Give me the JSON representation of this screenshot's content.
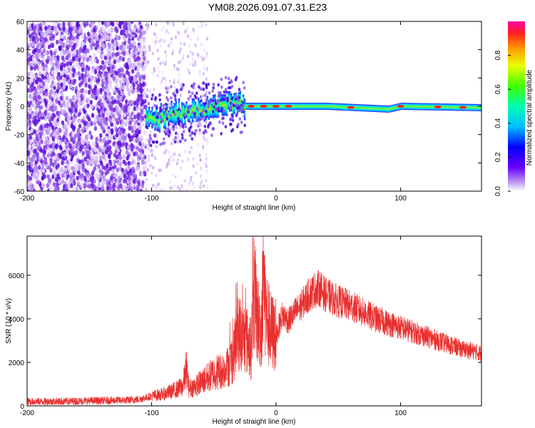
{
  "title": "YM08.2026.091.07.31.E23",
  "colors": {
    "snr_line": "#e8302e",
    "noise": "#7a2ee0",
    "axis": "#000000"
  },
  "chart_data": [
    {
      "type": "heatmap",
      "name": "spectrogram",
      "xlabel": "Height of straight line (km)",
      "ylabel": "Frequency (Hz)",
      "xlim": [
        -200,
        165
      ],
      "ylim": [
        -60,
        60
      ],
      "xticks": [
        -200,
        -100,
        0,
        100
      ],
      "yticks": [
        60,
        40,
        20,
        0,
        -20,
        -40,
        -60
      ],
      "ytick_labels": [
        "60",
        "40",
        "20",
        "0",
        "-20",
        "-40",
        "-60"
      ],
      "xtick_labels": [
        "-200",
        "-100",
        "0",
        "100"
      ],
      "colorbar": {
        "label": "Normalized spectral amplitude",
        "range": [
          0,
          1
        ],
        "ticks": [
          0.0,
          0.2,
          0.4,
          0.6,
          0.8
        ],
        "tick_labels": [
          "0.0",
          "0.2",
          "0.4",
          "0.6",
          "0.8"
        ]
      },
      "signal_track": [
        {
          "x": -105,
          "f": -10
        },
        {
          "x": -90,
          "f": -7
        },
        {
          "x": -70,
          "f": -4
        },
        {
          "x": -50,
          "f": -1
        },
        {
          "x": -32,
          "f": 3
        },
        {
          "x": -25,
          "f": 0
        },
        {
          "x": 0,
          "f": 0
        },
        {
          "x": 40,
          "f": 0
        },
        {
          "x": 90,
          "f": -2
        },
        {
          "x": 100,
          "f": 0
        },
        {
          "x": 165,
          "f": -1
        }
      ]
    },
    {
      "type": "line",
      "name": "snr",
      "xlabel": "Height of straight line (km)",
      "ylabel": "SNR (10 * v/v)",
      "xlim": [
        -200,
        165
      ],
      "ylim": [
        0,
        7800
      ],
      "xticks": [
        -200,
        -100,
        0,
        100
      ],
      "xtick_labels": [
        "-200",
        "-100",
        "0",
        "100"
      ],
      "yticks": [
        0,
        2000,
        4000,
        6000
      ],
      "ytick_labels": [
        "0",
        "2000",
        "4000",
        "6000"
      ],
      "series": [
        {
          "name": "SNR",
          "x": [
            -200,
            -180,
            -160,
            -140,
            -120,
            -110,
            -100,
            -95,
            -90,
            -85,
            -80,
            -75,
            -72,
            -70,
            -65,
            -60,
            -55,
            -50,
            -45,
            -40,
            -35,
            -30,
            -28,
            -25,
            -20,
            -18,
            -15,
            -12,
            -10,
            -8,
            -5,
            0,
            5,
            10,
            15,
            20,
            25,
            30,
            35,
            40,
            50,
            60,
            70,
            80,
            90,
            100,
            110,
            120,
            130,
            140,
            150,
            160,
            165
          ],
          "values": [
            200,
            200,
            220,
            240,
            260,
            300,
            450,
            500,
            550,
            650,
            750,
            900,
            1700,
            800,
            900,
            1100,
            1300,
            1500,
            1600,
            1700,
            2200,
            3400,
            3000,
            3200,
            2600,
            5500,
            4000,
            3500,
            5800,
            4200,
            3500,
            3200,
            4200,
            3900,
            4300,
            4600,
            5000,
            5300,
            5400,
            5100,
            4800,
            4600,
            4300,
            4000,
            3800,
            3600,
            3400,
            3200,
            3000,
            2800,
            2600,
            2500,
            2400
          ]
        }
      ]
    }
  ]
}
